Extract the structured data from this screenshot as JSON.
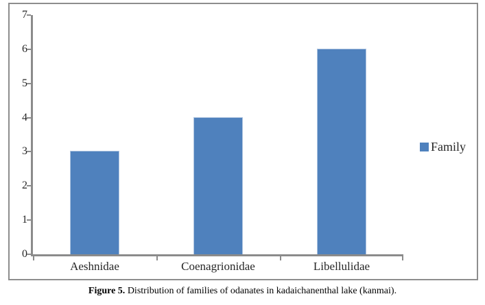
{
  "figure": {
    "caption_prefix": "Figure 5.",
    "caption_text": " Distribution of families of odanates in kadaichanenthal lake (kanmai)."
  },
  "chart_data": {
    "type": "bar",
    "title": "",
    "categories": [
      "Aeshnidae",
      "Coenagrionidae",
      "Libellulidae"
    ],
    "values": [
      3,
      4,
      6
    ],
    "series": [
      {
        "name": "Family",
        "values": [
          3,
          4,
          6
        ]
      }
    ],
    "legend": [
      {
        "label": "Family",
        "color": "#4F81BD"
      }
    ],
    "legend_position": "right",
    "xlabel": "",
    "ylabel": "",
    "ylim": [
      0,
      7
    ],
    "ytick_step": 1,
    "yticks": [
      0,
      1,
      2,
      3,
      4,
      5,
      6,
      7
    ],
    "grid": false,
    "bar_color": "#4F81BD",
    "bar_border_color": "#AEC4E0",
    "axis_color": "#8B8B8B",
    "frame_border_color": "#8D8D8D"
  }
}
